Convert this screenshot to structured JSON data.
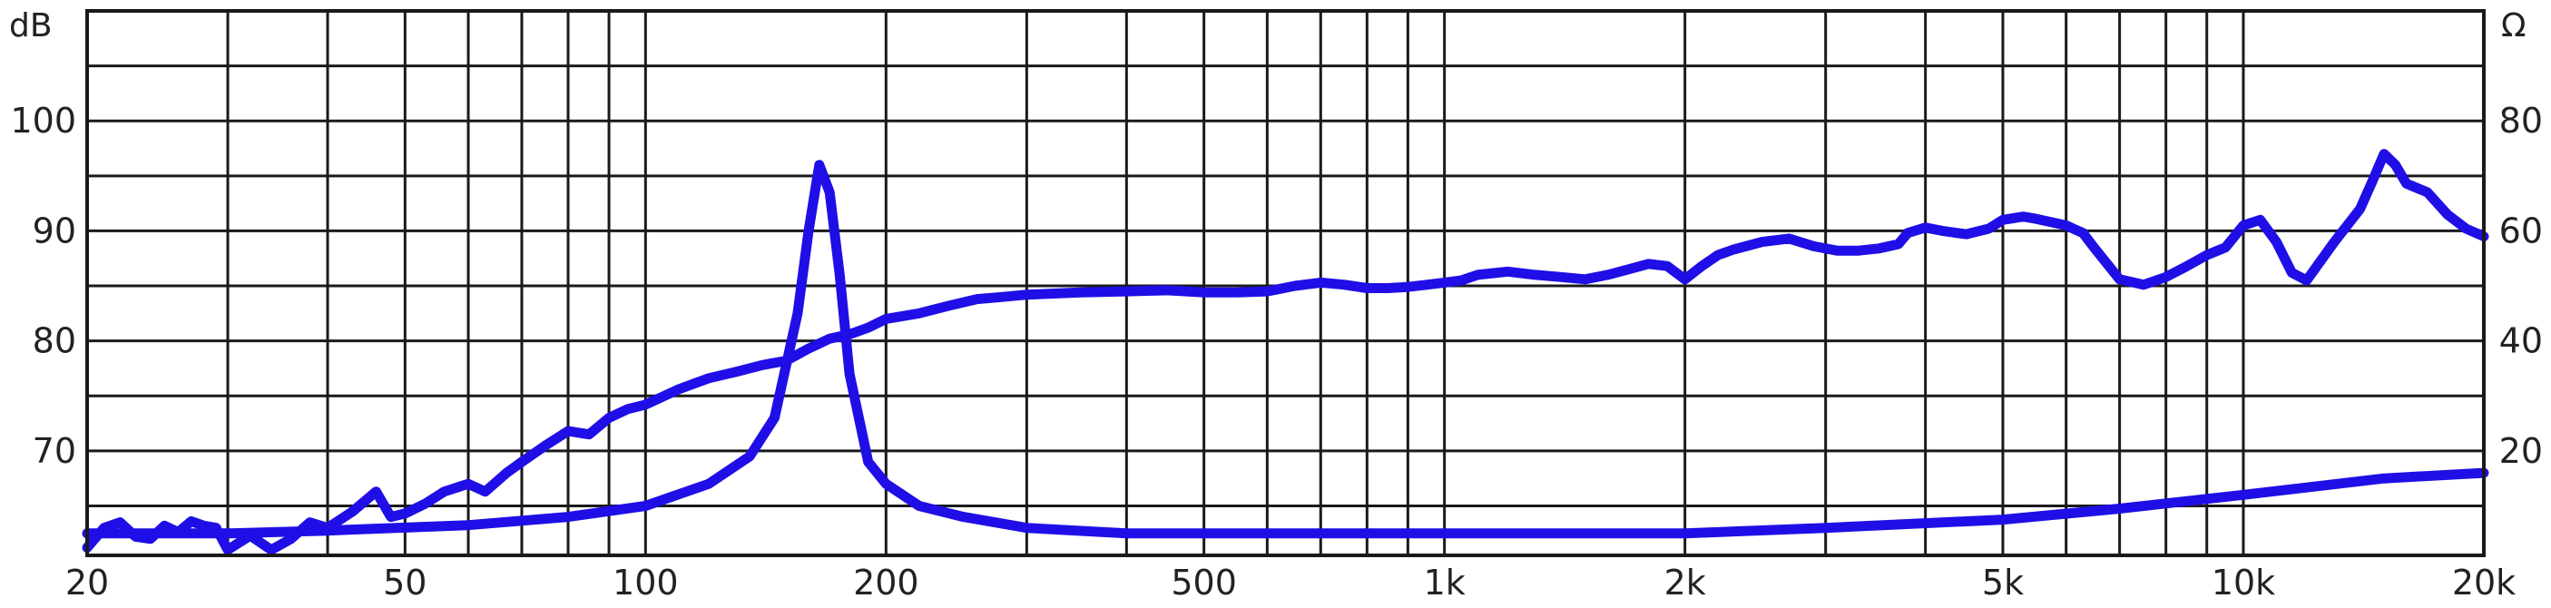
{
  "chart_data": {
    "type": "line",
    "title": "",
    "x_scale": "log",
    "xlim": [
      20,
      20000
    ],
    "left_axis": {
      "unit_label": "dB",
      "ylim": [
        60.5,
        110
      ],
      "ticks": [
        70,
        80,
        90,
        100
      ],
      "tick_labels": [
        "70",
        "80",
        "90",
        "100"
      ]
    },
    "right_axis": {
      "unit_label": "Ω",
      "ylim": [
        1,
        100
      ],
      "ticks": [
        20,
        40,
        60,
        80
      ],
      "tick_labels": [
        "20",
        "40",
        "60",
        "80"
      ]
    },
    "x_ticks": [
      {
        "value": 20,
        "label": "20"
      },
      {
        "value": 50,
        "label": "50"
      },
      {
        "value": 100,
        "label": "100"
      },
      {
        "value": 200,
        "label": "200"
      },
      {
        "value": 500,
        "label": "500"
      },
      {
        "value": 1000,
        "label": "1k"
      },
      {
        "value": 2000,
        "label": "2k"
      },
      {
        "value": 5000,
        "label": "5k"
      },
      {
        "value": 10000,
        "label": "10k"
      },
      {
        "value": 20000,
        "label": "20k"
      }
    ],
    "x_gridlines": [
      20,
      30,
      40,
      50,
      60,
      70,
      80,
      90,
      100,
      200,
      300,
      400,
      500,
      600,
      700,
      800,
      900,
      1000,
      2000,
      3000,
      4000,
      5000,
      6000,
      7000,
      8000,
      9000,
      10000,
      20000
    ],
    "y_gridlines_db": [
      60.5,
      65,
      70,
      75,
      80,
      85,
      90,
      95,
      100,
      105,
      110
    ],
    "grid": true,
    "line_color": "#1f0fe6",
    "series": [
      {
        "axis": "left",
        "x": [
          20,
          21,
          22,
          23,
          24,
          25,
          26,
          27,
          28,
          29,
          30,
          32,
          34,
          36,
          38,
          40,
          43,
          46,
          48,
          50,
          53,
          56,
          60,
          63,
          67,
          70,
          75,
          80,
          85,
          90,
          95,
          100,
          110,
          120,
          130,
          140,
          150,
          160,
          170,
          180,
          190,
          200,
          220,
          240,
          260,
          280,
          300,
          350,
          400,
          450,
          500,
          550,
          600,
          650,
          700,
          750,
          800,
          850,
          900,
          950,
          1000,
          1050,
          1100,
          1200,
          1300,
          1400,
          1500,
          1600,
          1700,
          1800,
          1900,
          2000,
          2100,
          2200,
          2300,
          2500,
          2700,
          2900,
          3100,
          3300,
          3500,
          3700,
          3800,
          4000,
          4200,
          4500,
          4800,
          5000,
          5300,
          5500,
          6000,
          6300,
          6500,
          7000,
          7500,
          8000,
          8500,
          9000,
          9500,
          10000,
          10500,
          11000,
          11500,
          12000,
          13000,
          14000,
          14500,
          15000,
          15500,
          16000,
          17000,
          18000,
          19000,
          20000
        ],
        "y": [
          61.2,
          63.0,
          63.5,
          62.2,
          62.0,
          63.2,
          62.6,
          63.6,
          63.2,
          63.0,
          61.0,
          62.3,
          61.0,
          62.0,
          63.5,
          63.0,
          64.5,
          66.3,
          64.0,
          64.3,
          65.2,
          66.3,
          67.0,
          66.3,
          68.0,
          69.0,
          70.5,
          71.8,
          71.5,
          73.0,
          73.8,
          74.2,
          75.6,
          76.6,
          77.2,
          77.8,
          78.2,
          79.3,
          80.2,
          80.6,
          81.2,
          82.0,
          82.5,
          83.2,
          83.8,
          84.0,
          84.2,
          84.4,
          84.5,
          84.6,
          84.4,
          84.4,
          84.5,
          85.0,
          85.3,
          85.1,
          84.8,
          84.8,
          84.9,
          85.1,
          85.3,
          85.5,
          86.0,
          86.3,
          86.0,
          85.8,
          85.6,
          86.0,
          86.5,
          87.0,
          86.8,
          85.6,
          86.8,
          87.8,
          88.3,
          89.0,
          89.3,
          88.6,
          88.2,
          88.2,
          88.4,
          88.8,
          89.8,
          90.3,
          90.0,
          89.7,
          90.2,
          91.0,
          91.3,
          91.1,
          90.5,
          89.8,
          88.5,
          85.6,
          85.1,
          85.8,
          86.8,
          87.8,
          88.5,
          90.5,
          91.0,
          89.0,
          86.2,
          85.5,
          89.0,
          92.0,
          94.5,
          97.0,
          96.0,
          94.3,
          93.5,
          91.5,
          90.2,
          89.5
        ]
      },
      {
        "axis": "right",
        "x": [
          20,
          30,
          40,
          60,
          80,
          100,
          120,
          135,
          145,
          155,
          160,
          165,
          170,
          175,
          180,
          190,
          200,
          220,
          250,
          300,
          400,
          500,
          700,
          1000,
          2000,
          3000,
          5000,
          7000,
          10000,
          15000,
          20000
        ],
        "y": [
          5,
          5,
          5.5,
          6.5,
          8,
          10,
          14,
          19,
          26,
          45,
          60,
          72,
          67,
          52,
          34,
          18,
          14,
          10,
          8,
          6,
          5,
          5,
          5,
          5,
          5,
          6,
          7.5,
          9.5,
          12,
          15,
          16
        ]
      }
    ]
  }
}
